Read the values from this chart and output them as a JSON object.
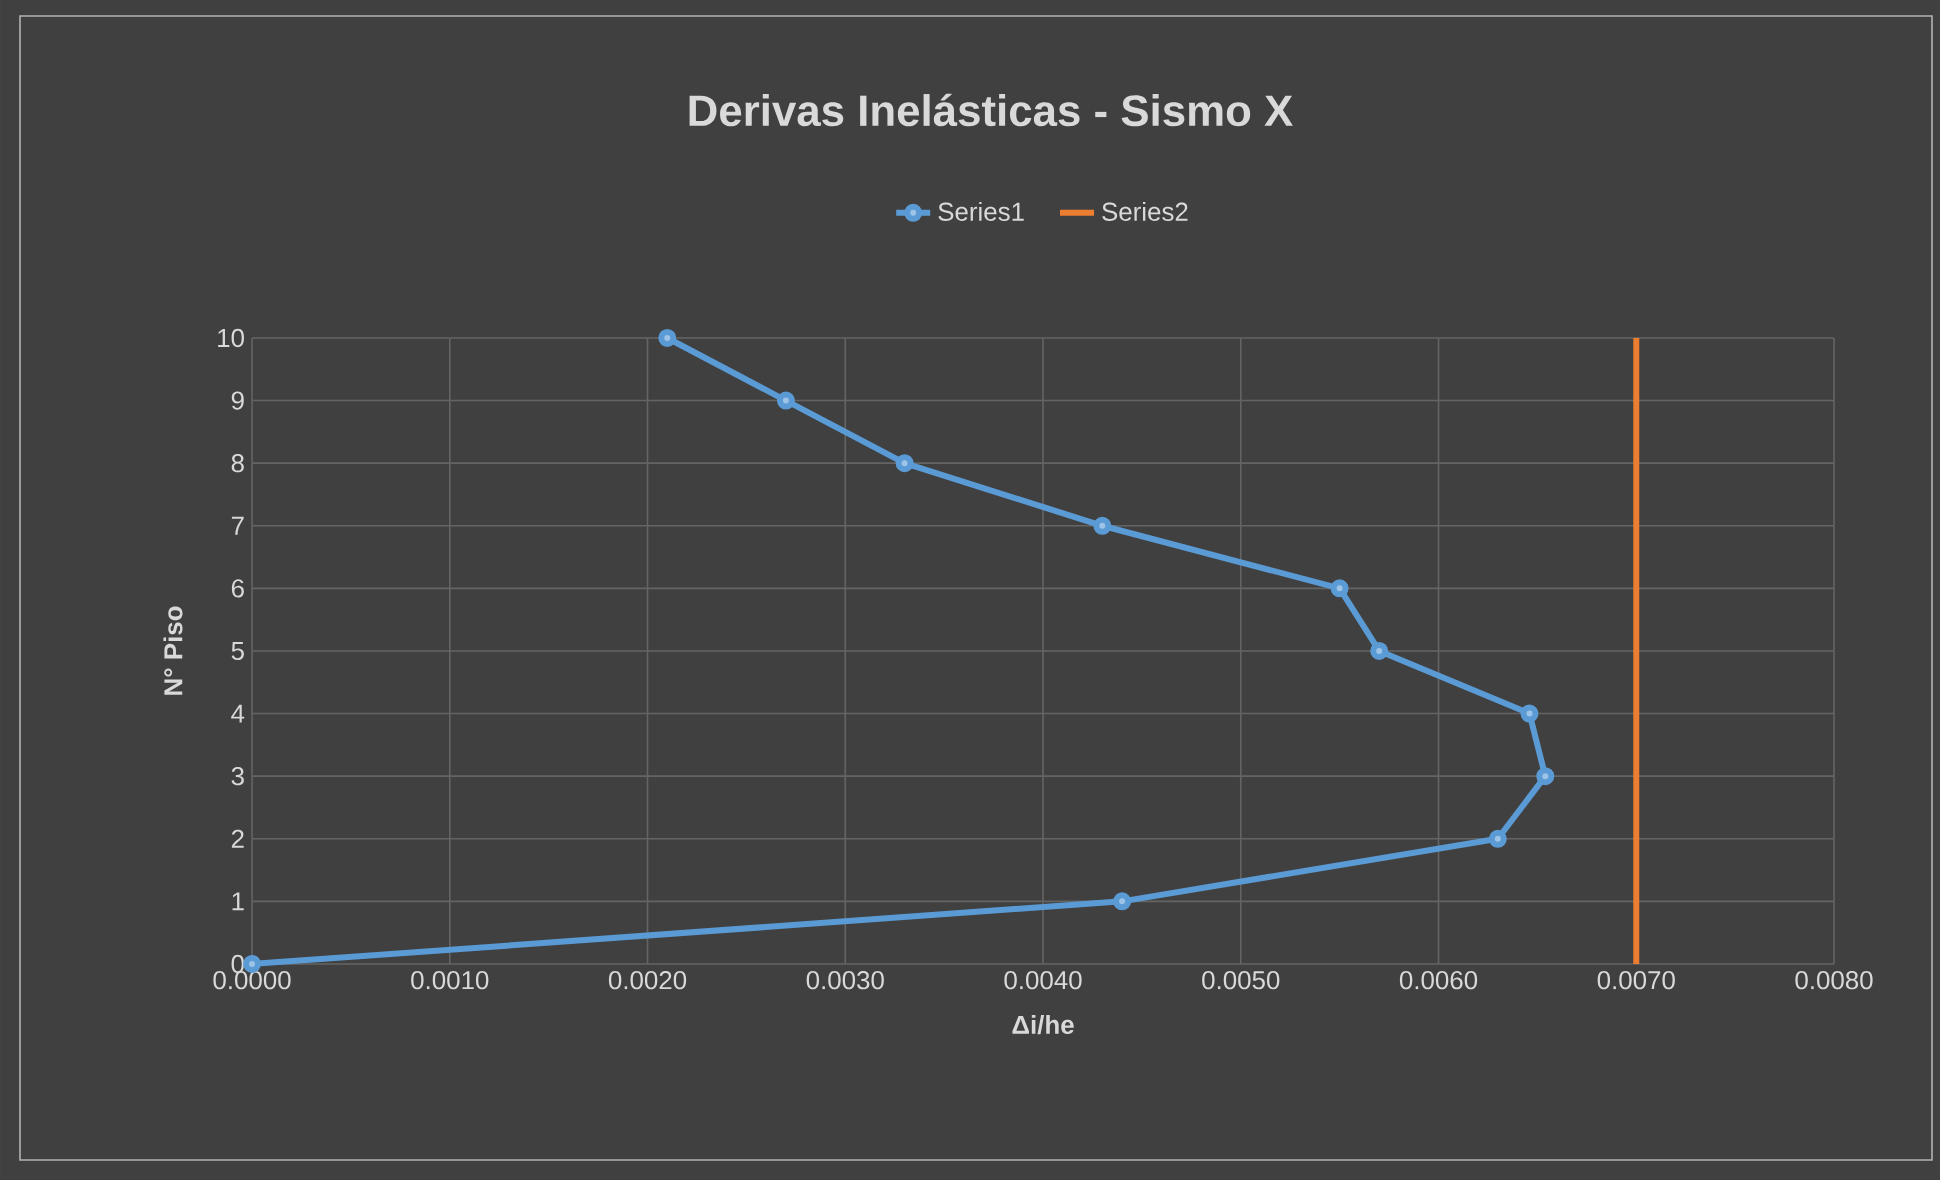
{
  "chart_data": {
    "type": "line",
    "title": "Derivas Inelásticas - Sismo X",
    "xlabel": "Δi/he",
    "ylabel": "N° Piso",
    "series": [
      {
        "name": "Series1",
        "color": "#5b9bd5",
        "marker": "circle",
        "x": [
          0.0,
          0.0044,
          0.0063,
          0.00654,
          0.00646,
          0.0057,
          0.0055,
          0.0043,
          0.0033,
          0.0027,
          0.0021
        ],
        "values": [
          0,
          1,
          2,
          3,
          4,
          5,
          6,
          7,
          8,
          9,
          10
        ]
      },
      {
        "name": "Series2",
        "color": "#ed7d31",
        "marker": "none",
        "x": [
          0.007,
          0.007
        ],
        "values": [
          0,
          10
        ]
      }
    ],
    "xlim": [
      0,
      0.008
    ],
    "ylim": [
      0,
      10
    ],
    "xticks": [
      {
        "value": 0,
        "label": "0.0000"
      },
      {
        "value": 0.001,
        "label": "0.0010"
      },
      {
        "value": 0.002,
        "label": "0.0020"
      },
      {
        "value": 0.003,
        "label": "0.0030"
      },
      {
        "value": 0.004,
        "label": "0.0040"
      },
      {
        "value": 0.005,
        "label": "0.0050"
      },
      {
        "value": 0.006,
        "label": "0.0060"
      },
      {
        "value": 0.007,
        "label": "0.0070"
      },
      {
        "value": 0.008,
        "label": "0.0080"
      }
    ],
    "yticks": [
      0,
      1,
      2,
      3,
      4,
      5,
      6,
      7,
      8,
      9,
      10
    ],
    "grid": true,
    "legend": "top"
  }
}
